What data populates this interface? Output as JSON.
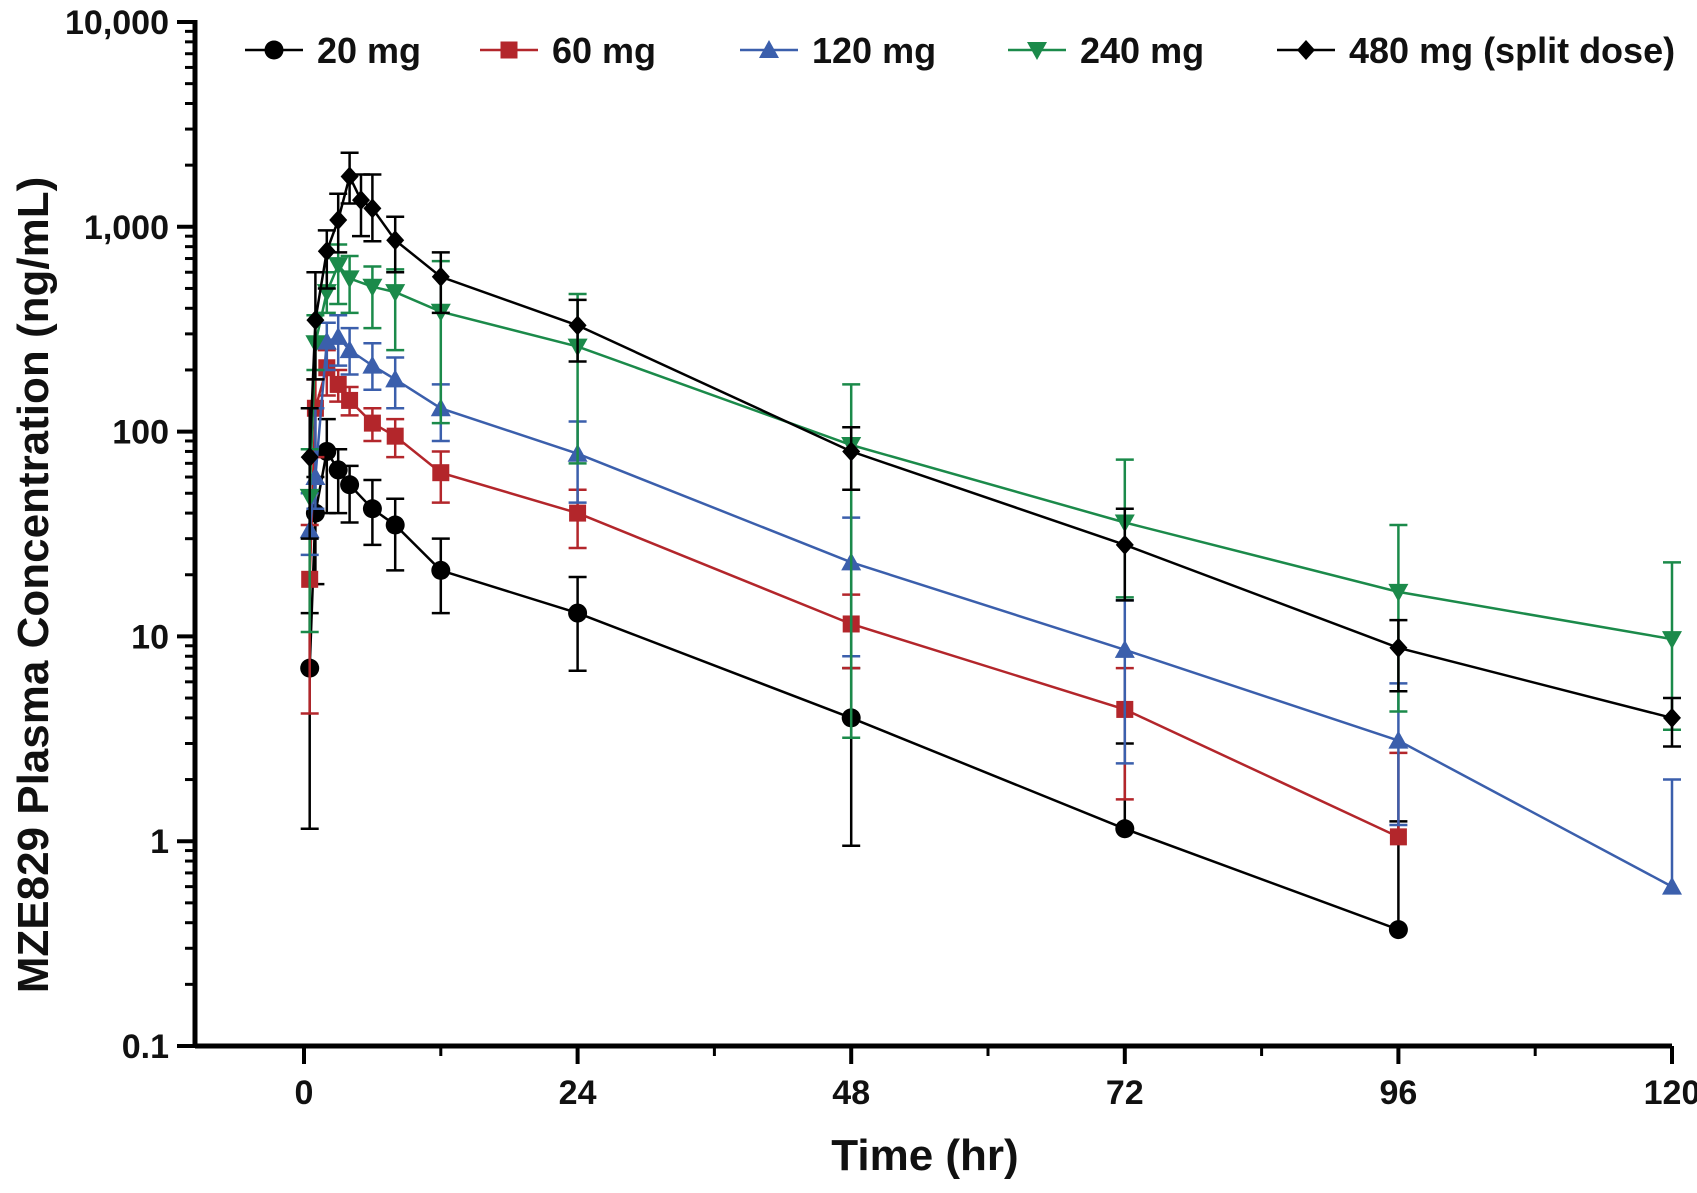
{
  "chart_data": {
    "type": "line",
    "title": "",
    "xlabel": "Time (hr)",
    "ylabel": "MZE829 Plasma Concentration (ng/mL)",
    "xlim": [
      -10,
      120
    ],
    "ylim": [
      0.1,
      10000
    ],
    "yscale": "log",
    "xticks": [
      0,
      24,
      48,
      72,
      96,
      120
    ],
    "xtick_labels": [
      "0",
      "24",
      "48",
      "72",
      "96",
      "120"
    ],
    "yticks": [
      0.1,
      1,
      10,
      100,
      1000,
      10000
    ],
    "ytick_labels": [
      "0.1",
      "1",
      "10",
      "100",
      "1,000",
      "10,000"
    ],
    "legend_position": "top",
    "series": [
      {
        "name": "20 mg",
        "color": "#000000",
        "marker": "circle",
        "x": [
          0.5,
          1,
          2,
          3,
          4,
          6,
          8,
          12,
          24,
          48,
          72,
          96
        ],
        "y": [
          7,
          40,
          80,
          65,
          55,
          42,
          35,
          21,
          13,
          4,
          1.15,
          0.37
        ],
        "err_low": [
          1.15,
          18,
          40,
          40,
          36,
          28,
          21,
          13,
          6.8,
          0.95,
          null,
          null
        ],
        "err_high": [
          13,
          60,
          115,
          82,
          68,
          58,
          47,
          30,
          19.5,
          7,
          3,
          1.25
        ]
      },
      {
        "name": "60 mg",
        "color": "#b3262b",
        "marker": "square",
        "x": [
          0.5,
          1,
          2,
          3,
          4,
          6,
          8,
          12,
          24,
          48,
          72,
          96
        ],
        "y": [
          19,
          130,
          205,
          170,
          142,
          110,
          95,
          63,
          40,
          11.5,
          4.4,
          1.05
        ],
        "err_low": [
          4.2,
          75,
          150,
          140,
          120,
          90,
          75,
          45,
          27,
          7,
          1.6,
          null
        ],
        "err_high": [
          35,
          180,
          250,
          200,
          165,
          130,
          115,
          80,
          52,
          16,
          7,
          2.7
        ]
      },
      {
        "name": "120 mg",
        "color": "#3b5fac",
        "marker": "triangle-up",
        "x": [
          0.5,
          1,
          2,
          3,
          4,
          6,
          8,
          12,
          24,
          48,
          72,
          96,
          120
        ],
        "y": [
          33,
          60,
          275,
          290,
          250,
          210,
          180,
          130,
          78,
          23,
          8.6,
          3.1,
          0.6
        ],
        "err_low": [
          25,
          42,
          200,
          210,
          190,
          160,
          130,
          90,
          45,
          8,
          2.4,
          1.2,
          null
        ],
        "err_high": [
          50,
          130,
          340,
          370,
          320,
          270,
          230,
          170,
          112,
          38,
          15,
          5.9,
          2
        ]
      },
      {
        "name": "240 mg",
        "color": "#1b8a4a",
        "marker": "triangle-down",
        "x": [
          0.5,
          1,
          2,
          3,
          4,
          6,
          8,
          12,
          24,
          48,
          72,
          96,
          120
        ],
        "y": [
          48,
          270,
          480,
          650,
          560,
          510,
          480,
          385,
          260,
          86,
          36,
          16.5,
          9.7
        ],
        "err_low": [
          10.5,
          200,
          380,
          420,
          380,
          320,
          250,
          110,
          70,
          3.2,
          15.5,
          4.3,
          3.5
        ],
        "err_high": [
          82,
          370,
          600,
          820,
          720,
          640,
          620,
          680,
          470,
          170,
          73,
          35,
          23
        ]
      },
      {
        "name": "480 mg (split dose)",
        "color": "#000000",
        "marker": "diamond",
        "x": [
          0.5,
          1,
          2,
          3,
          4,
          5,
          6,
          8,
          12,
          24,
          48,
          72,
          96,
          120
        ],
        "y": [
          75,
          350,
          760,
          1080,
          1760,
          1350,
          1230,
          860,
          570,
          330,
          80,
          28,
          8.8,
          4
        ],
        "err_low": [
          30,
          180,
          500,
          750,
          1300,
          900,
          850,
          600,
          380,
          220,
          52,
          15,
          5.4,
          2.9
        ],
        "err_high": [
          130,
          600,
          960,
          1450,
          2300,
          1800,
          1800,
          1120,
          750,
          440,
          105,
          42,
          12,
          5
        ]
      }
    ]
  }
}
